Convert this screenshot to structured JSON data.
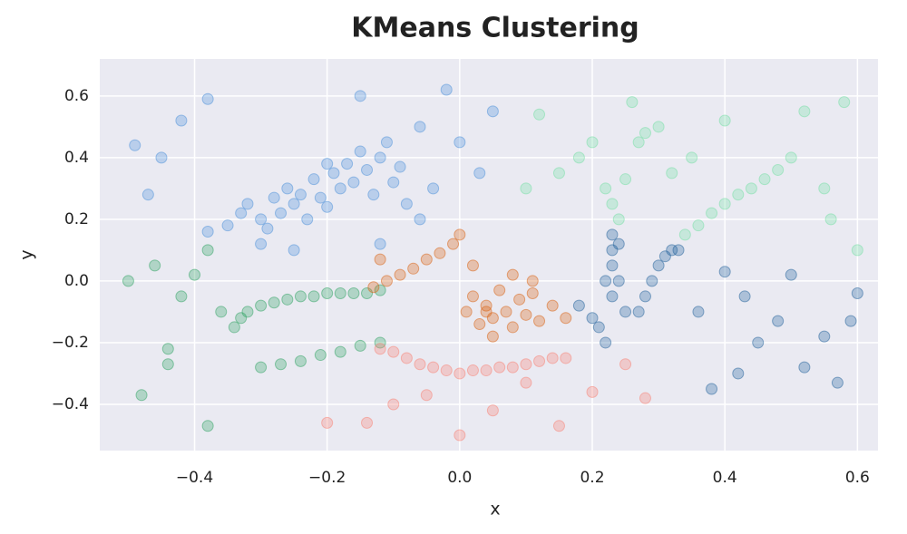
{
  "chart_data": {
    "type": "scatter",
    "title": "KMeans Clustering",
    "x_label": "x",
    "y_label": "y",
    "xlim": [
      -0.543,
      0.631
    ],
    "ylim": [
      -0.55,
      0.72
    ],
    "xticks": [
      {
        "value": -0.4,
        "label": "−0.4"
      },
      {
        "value": -0.2,
        "label": "−0.2"
      },
      {
        "value": 0,
        "label": "0.0"
      },
      0.2,
      0.4,
      0.6
    ],
    "yticks": [
      {
        "value": -0.4,
        "label": "−0.4"
      },
      {
        "value": -0.2,
        "label": "−0.2"
      },
      {
        "value": 0,
        "label": "0.0"
      },
      0.2,
      0.4,
      0.6
    ],
    "grid": true,
    "background": "#eaeaf2",
    "series": [
      {
        "color": "#4a90d9",
        "x": [
          -0.49,
          -0.47,
          -0.45,
          -0.42,
          -0.38,
          -0.35,
          -0.33,
          -0.32,
          -0.3,
          -0.29,
          -0.28,
          -0.27,
          -0.26,
          -0.25,
          -0.24,
          -0.23,
          -0.22,
          -0.21,
          -0.2,
          -0.19,
          -0.18,
          -0.17,
          -0.16,
          -0.15,
          -0.14,
          -0.13,
          -0.12,
          -0.11,
          -0.1,
          -0.09,
          -0.08,
          -0.06,
          -0.04,
          -0.02,
          0.0,
          0.03,
          0.05,
          -0.3,
          -0.25,
          -0.2,
          -0.15,
          -0.38,
          -0.12,
          -0.06
        ],
        "values": [
          0.44,
          0.28,
          0.4,
          0.52,
          0.59,
          0.18,
          0.22,
          0.25,
          0.2,
          0.17,
          0.27,
          0.22,
          0.3,
          0.25,
          0.28,
          0.2,
          0.33,
          0.27,
          0.24,
          0.35,
          0.3,
          0.38,
          0.32,
          0.42,
          0.36,
          0.28,
          0.4,
          0.45,
          0.32,
          0.37,
          0.25,
          0.5,
          0.3,
          0.62,
          0.45,
          0.35,
          0.55,
          0.12,
          0.1,
          0.38,
          0.6,
          0.16,
          0.12,
          0.2
        ]
      },
      {
        "color": "#2ca25f",
        "x": [
          -0.5,
          -0.48,
          -0.46,
          -0.44,
          -0.42,
          -0.4,
          -0.38,
          -0.36,
          -0.34,
          -0.33,
          -0.32,
          -0.3,
          -0.28,
          -0.26,
          -0.24,
          -0.22,
          -0.2,
          -0.18,
          -0.16,
          -0.14,
          -0.12,
          -0.3,
          -0.27,
          -0.24,
          -0.21,
          -0.18,
          -0.15,
          -0.12,
          -0.44,
          -0.38
        ],
        "values": [
          0.0,
          -0.37,
          0.05,
          -0.22,
          -0.05,
          0.02,
          -0.47,
          -0.1,
          -0.15,
          -0.12,
          -0.1,
          -0.08,
          -0.07,
          -0.06,
          -0.05,
          -0.05,
          -0.04,
          -0.04,
          -0.04,
          -0.04,
          -0.03,
          -0.28,
          -0.27,
          -0.26,
          -0.24,
          -0.23,
          -0.21,
          -0.2,
          -0.27,
          0.1
        ]
      },
      {
        "color": "#d95f0e",
        "x": [
          -0.13,
          -0.11,
          -0.09,
          -0.07,
          -0.05,
          -0.03,
          -0.01,
          0.0,
          -0.12,
          0.01,
          0.02,
          0.03,
          0.04,
          0.05,
          0.06,
          0.07,
          0.08,
          0.09,
          0.1,
          0.11,
          0.12,
          0.14,
          0.16,
          0.02,
          0.05,
          0.08,
          0.11,
          0.04
        ],
        "values": [
          -0.02,
          0.0,
          0.02,
          0.04,
          0.07,
          0.09,
          0.12,
          0.15,
          0.07,
          -0.1,
          -0.05,
          -0.14,
          -0.08,
          -0.12,
          -0.03,
          -0.1,
          -0.15,
          -0.06,
          -0.11,
          0.0,
          -0.13,
          -0.08,
          -0.12,
          0.05,
          -0.18,
          0.02,
          -0.04,
          -0.1
        ]
      },
      {
        "color": "#fa7f72",
        "x": [
          -0.12,
          -0.1,
          -0.08,
          -0.06,
          -0.04,
          -0.02,
          0.0,
          0.02,
          0.04,
          0.06,
          0.08,
          0.1,
          0.12,
          0.14,
          0.16,
          -0.14,
          -0.1,
          -0.05,
          0.0,
          0.05,
          0.1,
          0.15,
          0.2,
          0.25,
          0.28,
          -0.2
        ],
        "values": [
          -0.22,
          -0.23,
          -0.25,
          -0.27,
          -0.28,
          -0.29,
          -0.3,
          -0.29,
          -0.29,
          -0.28,
          -0.28,
          -0.27,
          -0.26,
          -0.25,
          -0.25,
          -0.46,
          -0.4,
          -0.37,
          -0.5,
          -0.42,
          -0.33,
          -0.47,
          -0.36,
          -0.27,
          -0.38,
          -0.46
        ]
      },
      {
        "color": "#1f5f9a",
        "x": [
          0.18,
          0.2,
          0.21,
          0.22,
          0.23,
          0.23,
          0.23,
          0.24,
          0.24,
          0.23,
          0.22,
          0.25,
          0.27,
          0.28,
          0.29,
          0.3,
          0.31,
          0.32,
          0.33,
          0.36,
          0.38,
          0.4,
          0.42,
          0.43,
          0.45,
          0.48,
          0.5,
          0.52,
          0.55,
          0.57,
          0.59,
          0.6
        ],
        "values": [
          -0.08,
          -0.12,
          -0.15,
          0.0,
          0.15,
          0.1,
          0.05,
          0.0,
          0.12,
          -0.05,
          -0.2,
          -0.1,
          -0.1,
          -0.05,
          0.0,
          0.05,
          0.08,
          0.1,
          0.1,
          -0.1,
          -0.35,
          0.03,
          -0.3,
          -0.05,
          -0.2,
          -0.13,
          0.02,
          -0.28,
          -0.18,
          -0.33,
          -0.13,
          -0.04
        ]
      },
      {
        "color": "#74e0a4",
        "x": [
          0.1,
          0.12,
          0.15,
          0.18,
          0.2,
          0.22,
          0.23,
          0.24,
          0.25,
          0.27,
          0.3,
          0.32,
          0.34,
          0.36,
          0.38,
          0.4,
          0.42,
          0.44,
          0.46,
          0.48,
          0.5,
          0.52,
          0.55,
          0.58,
          0.6,
          0.26,
          0.35,
          0.4,
          0.56,
          0.28
        ],
        "values": [
          0.3,
          0.54,
          0.35,
          0.4,
          0.45,
          0.3,
          0.25,
          0.2,
          0.33,
          0.45,
          0.5,
          0.35,
          0.15,
          0.18,
          0.22,
          0.25,
          0.28,
          0.3,
          0.33,
          0.36,
          0.4,
          0.55,
          0.3,
          0.58,
          0.1,
          0.58,
          0.4,
          0.52,
          0.2,
          0.48
        ]
      }
    ]
  }
}
